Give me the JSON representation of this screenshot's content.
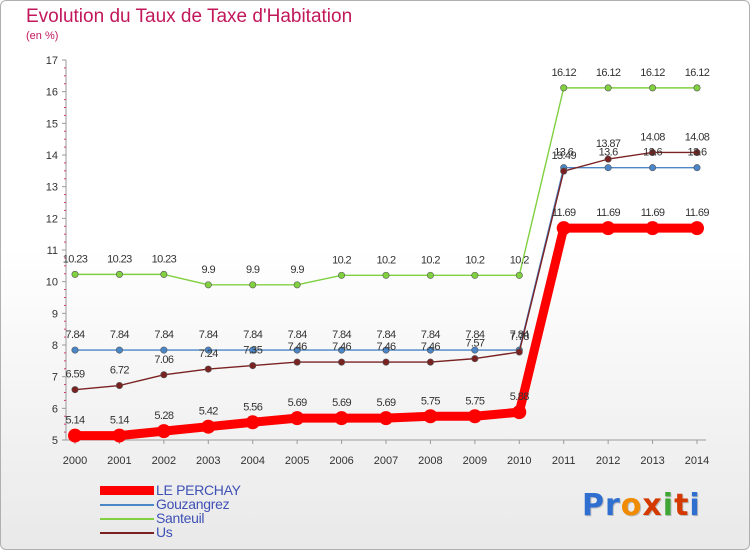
{
  "chart_data": {
    "type": "line",
    "title": "Evolution du Taux de Taxe d'Habitation",
    "subtitle": "(en %)",
    "x": [
      "2000",
      "2001",
      "2002",
      "2003",
      "2004",
      "2005",
      "2006",
      "2007",
      "2008",
      "2009",
      "2010",
      "2011",
      "2012",
      "2013",
      "2014"
    ],
    "y_ticks": [
      "5",
      "6",
      "7",
      "8",
      "9",
      "10",
      "11",
      "12",
      "13",
      "14",
      "15",
      "16",
      "17"
    ],
    "ylim": [
      5,
      17
    ],
    "grid": false,
    "legend_position": "bottom-left",
    "series": [
      {
        "name": "LE PERCHAY",
        "color": "#ff0000",
        "values": [
          5.14,
          5.14,
          5.28,
          5.42,
          5.56,
          5.69,
          5.69,
          5.69,
          5.75,
          5.75,
          5.88,
          11.69,
          11.69,
          11.69,
          11.69
        ],
        "labels": [
          "5.14",
          "5.14",
          "5.28",
          "5.42",
          "5.56",
          "5.69",
          "5.69",
          "5.69",
          "5.75",
          "5.75",
          "5.88",
          "11.69",
          "11.69",
          "11.69",
          "11.69"
        ]
      },
      {
        "name": "Gouzangrez",
        "color": "#4a86c8",
        "values": [
          7.84,
          7.84,
          7.84,
          7.84,
          7.84,
          7.84,
          7.84,
          7.84,
          7.84,
          7.84,
          7.84,
          13.6,
          13.6,
          13.6,
          13.6
        ],
        "labels": [
          "7.84",
          "7.84",
          "7.84",
          "7.84",
          "7.84",
          "7.84",
          "7.84",
          "7.84",
          "7.84",
          "7.84",
          "7.84",
          "13.6",
          "13.6",
          "13.6",
          "13.6"
        ]
      },
      {
        "name": "Santeuil",
        "color": "#80d040",
        "values": [
          10.23,
          10.23,
          10.23,
          9.9,
          9.9,
          9.9,
          10.2,
          10.2,
          10.2,
          10.2,
          10.2,
          16.12,
          16.12,
          16.12,
          16.12
        ],
        "labels": [
          "10.23",
          "10.23",
          "10.23",
          "9.9",
          "9.9",
          "9.9",
          "10.2",
          "10.2",
          "10.2",
          "10.2",
          "10.2",
          "16.12",
          "16.12",
          "16.12",
          "16.12"
        ]
      },
      {
        "name": "Us",
        "color": "#7a2222",
        "values": [
          6.59,
          6.72,
          7.06,
          7.24,
          7.35,
          7.46,
          7.46,
          7.46,
          7.46,
          7.57,
          7.78,
          13.49,
          13.87,
          14.08,
          14.08
        ],
        "labels": [
          "6.59",
          "6.72",
          "7.06",
          "7.24",
          "7.35",
          "7.46",
          "7.46",
          "7.46",
          "7.46",
          "7.57",
          "7.78",
          "13.49",
          "13.87",
          "14.08",
          "14.08"
        ]
      }
    ]
  },
  "legend": [
    {
      "label": "LE PERCHAY",
      "color": "#ff0000"
    },
    {
      "label": "Gouzangrez",
      "color": "#4a86c8"
    },
    {
      "label": "Santeuil",
      "color": "#80d040"
    },
    {
      "label": "Us",
      "color": "#7a2222"
    }
  ],
  "logo": {
    "text": "Proxiti",
    "colors": [
      "#2e6fd0",
      "#2e6fd0",
      "#f08a00",
      "#d43a00",
      "#3fa535",
      "#d43a00",
      "#2e6fd0"
    ]
  }
}
